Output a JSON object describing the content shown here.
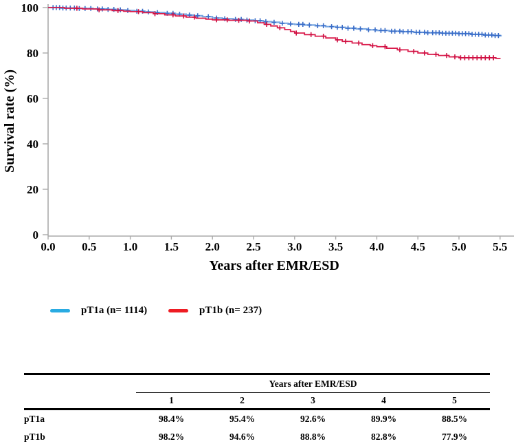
{
  "chart_data": {
    "type": "line",
    "subtype": "kaplan-meier-step",
    "title": "",
    "xlabel": "Years after EMR/ESD",
    "ylabel": "Survival rate (%)",
    "xlim": [
      0,
      5.5
    ],
    "ylim": [
      0,
      100
    ],
    "xticks": [
      0,
      0.5,
      1.0,
      1.5,
      2.0,
      2.5,
      3.0,
      3.5,
      4.0,
      4.5,
      5.0,
      5.5
    ],
    "yticks": [
      0,
      20,
      40,
      60,
      80,
      100
    ],
    "grid": false,
    "legend_position": "below",
    "axis_color": "#aaaaaa",
    "series": [
      {
        "name": "pT1a",
        "n": 1114,
        "line_color": "#79a7e2",
        "mark_color": "#3a6dc8",
        "line_width": 2.2,
        "end_time": 5.52,
        "points": [
          [
            0,
            100
          ],
          [
            0.15,
            99.8
          ],
          [
            0.35,
            99.6
          ],
          [
            0.55,
            99.4
          ],
          [
            0.72,
            99.2
          ],
          [
            0.85,
            99.0
          ],
          [
            0.95,
            98.7
          ],
          [
            1.05,
            98.4
          ],
          [
            1.18,
            98.1
          ],
          [
            1.3,
            97.8
          ],
          [
            1.42,
            97.5
          ],
          [
            1.55,
            97.1
          ],
          [
            1.68,
            96.7
          ],
          [
            1.78,
            96.4
          ],
          [
            1.88,
            96.0
          ],
          [
            2.0,
            95.4
          ],
          [
            2.12,
            95.1
          ],
          [
            2.25,
            94.8
          ],
          [
            2.38,
            94.5
          ],
          [
            2.5,
            94.2
          ],
          [
            2.62,
            93.8
          ],
          [
            2.72,
            93.5
          ],
          [
            2.82,
            93.1
          ],
          [
            2.92,
            92.8
          ],
          [
            3.0,
            92.6
          ],
          [
            3.12,
            92.3
          ],
          [
            3.25,
            92.0
          ],
          [
            3.38,
            91.6
          ],
          [
            3.5,
            91.3
          ],
          [
            3.62,
            90.9
          ],
          [
            3.75,
            90.6
          ],
          [
            3.88,
            90.2
          ],
          [
            4.0,
            89.9
          ],
          [
            4.15,
            89.6
          ],
          [
            4.3,
            89.4
          ],
          [
            4.45,
            89.1
          ],
          [
            4.6,
            88.9
          ],
          [
            4.8,
            88.7
          ],
          [
            5.0,
            88.5
          ],
          [
            5.15,
            88.2
          ],
          [
            5.3,
            87.9
          ],
          [
            5.42,
            87.7
          ],
          [
            5.5,
            87.6
          ]
        ],
        "censor_times": [
          0.06,
          0.1,
          0.14,
          0.18,
          0.22,
          0.27,
          0.32,
          0.38,
          0.45,
          0.52,
          0.6,
          0.66,
          0.73,
          0.8,
          0.88,
          0.97,
          1.08,
          1.15,
          1.22,
          1.33,
          1.45,
          1.52,
          1.6,
          1.72,
          1.82,
          1.95,
          2.05,
          2.15,
          2.28,
          2.35,
          2.42,
          2.52,
          2.58,
          2.65,
          2.75,
          2.85,
          2.95,
          3.05,
          3.1,
          3.18,
          3.28,
          3.35,
          3.45,
          3.52,
          3.58,
          3.65,
          3.72,
          3.8,
          3.9,
          3.98,
          4.05,
          4.1,
          4.18,
          4.22,
          4.28,
          4.32,
          4.38,
          4.42,
          4.48,
          4.52,
          4.58,
          4.62,
          4.68,
          4.72,
          4.76,
          4.8,
          4.84,
          4.88,
          4.92,
          4.96,
          5.0,
          5.04,
          5.08,
          5.12,
          5.16,
          5.2,
          5.24,
          5.28,
          5.32,
          5.36,
          5.4,
          5.44,
          5.48
        ]
      },
      {
        "name": "pT1b",
        "n": 237,
        "line_color": "#da1c4c",
        "mark_color": "#cf0f42",
        "line_width": 1.8,
        "end_time": 5.5,
        "points": [
          [
            0,
            100
          ],
          [
            0.2,
            99.7
          ],
          [
            0.42,
            99.4
          ],
          [
            0.6,
            99.0
          ],
          [
            0.78,
            98.7
          ],
          [
            0.92,
            98.4
          ],
          [
            1.0,
            98.2
          ],
          [
            1.15,
            97.8
          ],
          [
            1.28,
            97.3
          ],
          [
            1.42,
            96.8
          ],
          [
            1.55,
            96.3
          ],
          [
            1.68,
            95.8
          ],
          [
            1.8,
            95.3
          ],
          [
            1.92,
            94.9
          ],
          [
            2.0,
            94.6
          ],
          [
            2.2,
            94.4
          ],
          [
            2.42,
            94.1
          ],
          [
            2.55,
            93.3
          ],
          [
            2.63,
            92.6
          ],
          [
            2.71,
            91.9
          ],
          [
            2.79,
            91.1
          ],
          [
            2.88,
            90.3
          ],
          [
            2.95,
            89.5
          ],
          [
            3.0,
            88.8
          ],
          [
            3.12,
            88.1
          ],
          [
            3.25,
            87.4
          ],
          [
            3.38,
            86.6
          ],
          [
            3.5,
            85.8
          ],
          [
            3.58,
            85.1
          ],
          [
            3.7,
            84.4
          ],
          [
            3.82,
            83.7
          ],
          [
            3.92,
            83.2
          ],
          [
            4.0,
            82.8
          ],
          [
            4.12,
            82.1
          ],
          [
            4.25,
            81.4
          ],
          [
            4.38,
            80.7
          ],
          [
            4.5,
            80.0
          ],
          [
            4.62,
            79.4
          ],
          [
            4.75,
            78.9
          ],
          [
            4.88,
            78.3
          ],
          [
            5.0,
            77.9
          ],
          [
            5.45,
            77.6
          ],
          [
            5.5,
            77.5
          ]
        ],
        "censor_times": [
          0.35,
          0.62,
          0.85,
          1.1,
          1.3,
          1.52,
          1.65,
          1.78,
          2.05,
          2.18,
          2.32,
          2.45,
          2.66,
          2.82,
          3.02,
          3.2,
          3.35,
          3.52,
          3.62,
          3.78,
          3.95,
          4.1,
          4.28,
          4.45,
          4.58,
          4.72,
          4.85,
          4.95,
          5.02,
          5.07,
          5.12,
          5.17,
          5.22,
          5.27,
          5.32,
          5.37,
          5.42
        ]
      }
    ]
  },
  "legend": {
    "items": [
      {
        "label": "pT1a (n= 1114)",
        "color": "#29abe2"
      },
      {
        "label": "pT1b (n= 237)",
        "color": "#ee1c23"
      }
    ]
  },
  "table": {
    "span_header": "Years after EMR/ESD",
    "col_headers": [
      "1",
      "2",
      "3",
      "4",
      "5"
    ],
    "rows": [
      {
        "label": "pT1a",
        "values": [
          "98.4%",
          "95.4%",
          "92.6%",
          "89.9%",
          "88.5%"
        ]
      },
      {
        "label": "pT1b",
        "values": [
          "98.2%",
          "94.6%",
          "88.8%",
          "82.8%",
          "77.9%"
        ]
      }
    ]
  }
}
